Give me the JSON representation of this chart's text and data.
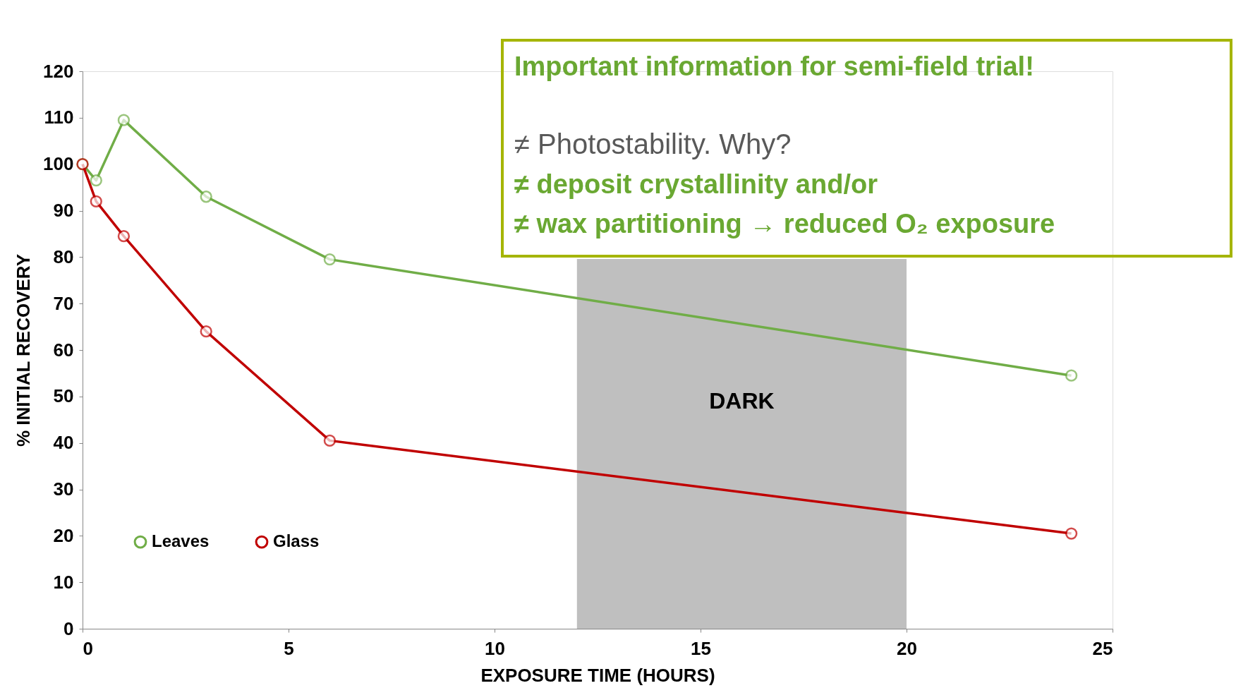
{
  "chart_data": {
    "type": "line",
    "xlabel": "EXPOSURE  TIME (HOURS)",
    "ylabel": "% INITIAL RECOVERY",
    "x": [
      0,
      0.33,
      1,
      3,
      6,
      24
    ],
    "series": [
      {
        "name": "Leaves",
        "color": "#70ad47",
        "values": [
          100,
          96.5,
          109.5,
          93,
          79.5,
          54.5
        ]
      },
      {
        "name": "Glass",
        "color": "#c00000",
        "values": [
          100,
          92,
          84.5,
          64,
          40.5,
          20.5
        ]
      }
    ],
    "xlim": [
      0,
      25
    ],
    "xticks": [
      0,
      5,
      10,
      15,
      20,
      25
    ],
    "ylim": [
      0,
      120
    ],
    "yticks": [
      0,
      10,
      20,
      30,
      40,
      50,
      60,
      70,
      80,
      90,
      100,
      110,
      120
    ],
    "bands": [
      {
        "axis": "x",
        "from": 12,
        "to": 20,
        "label": "DARK",
        "color": "#bfbfbf"
      }
    ],
    "annotations": [
      "Important information for semi-field trial!",
      "≠ Photostability. Why?",
      "≠ deposit crystallinity and/or",
      "≠ wax partitioning → reduced O₂ exposure"
    ],
    "legend": "bottom left",
    "grid": false,
    "marker": "circle",
    "line_style": "solid"
  }
}
